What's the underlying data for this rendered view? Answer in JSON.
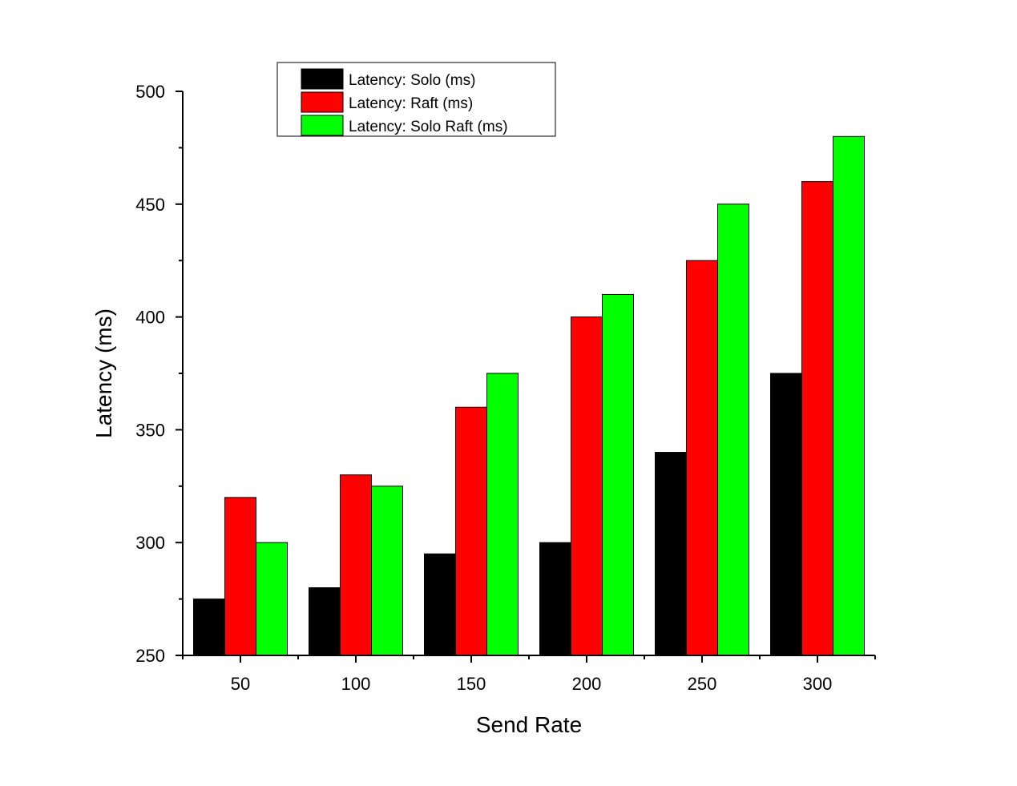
{
  "chart_data": {
    "type": "bar",
    "title": "",
    "xlabel": "Send Rate",
    "ylabel": "Latency (ms)",
    "ylim": [
      250,
      500
    ],
    "yticks": [
      250,
      300,
      350,
      400,
      450,
      500
    ],
    "categories": [
      "50",
      "100",
      "150",
      "200",
      "250",
      "300"
    ],
    "legend_position": "top-left",
    "grid": false,
    "series": [
      {
        "name": "Latency: Solo (ms)",
        "color": "#000000",
        "values": [
          275,
          280,
          295,
          300,
          340,
          375
        ]
      },
      {
        "name": "Latency: Raft (ms)",
        "color": "#ff0000",
        "values": [
          320,
          330,
          360,
          400,
          425,
          460
        ]
      },
      {
        "name": "Latency: Solo Raft (ms)",
        "color": "#00ff00",
        "values": [
          300,
          325,
          375,
          410,
          450,
          480
        ]
      }
    ]
  }
}
